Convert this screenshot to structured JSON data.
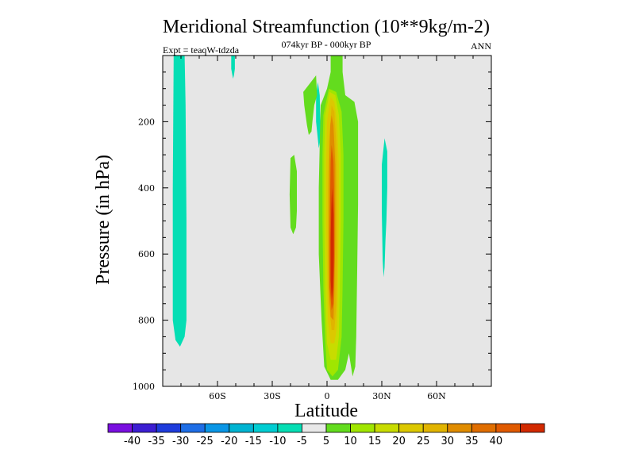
{
  "chart_data": {
    "type": "contour",
    "title": "Meridional Streamfunction (10**9kg/m-2)",
    "subtitle": "074kyr BP - 000kyr BP",
    "left_label": "Expt = teaqW-tdzda",
    "right_label": "ANN",
    "xlabel": "Latitude",
    "ylabel": "Pressure (in hPa)",
    "xlim": [
      -90,
      90
    ],
    "ylim": [
      0,
      1000
    ],
    "y_reversed": true,
    "x_ticks": [
      {
        "value": -60,
        "label": "60S"
      },
      {
        "value": -30,
        "label": "30S"
      },
      {
        "value": 0,
        "label": "0"
      },
      {
        "value": 30,
        "label": "30N"
      },
      {
        "value": 60,
        "label": "60N"
      }
    ],
    "y_ticks": [
      {
        "value": 200,
        "label": "200"
      },
      {
        "value": 400,
        "label": "400"
      },
      {
        "value": 600,
        "label": "600"
      },
      {
        "value": 800,
        "label": "800"
      },
      {
        "value": 1000,
        "label": "1000"
      }
    ],
    "background_color": "#e6e6e6",
    "contour_regions": [
      {
        "name": "sh-mid-lat-negative",
        "level": "-10",
        "color": "#05deb4",
        "points": [
          [
            -84,
            0
          ],
          [
            -78,
            0
          ],
          [
            -77.5,
            150
          ],
          [
            -77,
            500
          ],
          [
            -77,
            800
          ],
          [
            -78,
            850
          ],
          [
            -80.5,
            880
          ],
          [
            -83,
            860
          ],
          [
            -84.5,
            800
          ],
          [
            -84.5,
            400
          ]
        ]
      },
      {
        "name": "sh-upper-small-negative",
        "level": "-10",
        "color": "#05deb4",
        "points": [
          [
            -52.5,
            0
          ],
          [
            -50.5,
            0
          ],
          [
            -50.5,
            40
          ],
          [
            -51,
            60
          ],
          [
            -51.5,
            70
          ],
          [
            -52.5,
            40
          ]
        ]
      },
      {
        "name": "tropical-upper-negative",
        "level": "-10",
        "color": "#05deb4",
        "points": [
          [
            -5,
            80
          ],
          [
            -4,
            120
          ],
          [
            -3.5,
            250
          ],
          [
            -4.5,
            280
          ],
          [
            -6,
            200
          ],
          [
            -6,
            120
          ]
        ]
      },
      {
        "name": "nh-subtropics-negative",
        "level": "-10",
        "color": "#05deb4",
        "points": [
          [
            31.5,
            250
          ],
          [
            33,
            290
          ],
          [
            33,
            400
          ],
          [
            32.5,
            500
          ],
          [
            32,
            560
          ],
          [
            31.5,
            640
          ],
          [
            31,
            670
          ],
          [
            30.5,
            620
          ],
          [
            30,
            470
          ],
          [
            30,
            330
          ]
        ]
      },
      {
        "name": "sh-subtropics-positive",
        "level": "5",
        "color": "#63dc1e",
        "points": [
          [
            -20,
            310
          ],
          [
            -18,
            300
          ],
          [
            -16.5,
            350
          ],
          [
            -16.5,
            470
          ],
          [
            -17,
            520
          ],
          [
            -18.5,
            540
          ],
          [
            -20,
            520
          ],
          [
            -20.5,
            420
          ]
        ]
      },
      {
        "name": "upper-trop-positive",
        "level": "5",
        "color": "#63dc1e",
        "points": [
          [
            -13,
            110
          ],
          [
            -6,
            60
          ],
          [
            -5.5,
            120
          ],
          [
            -7,
            150
          ],
          [
            -8,
            200
          ],
          [
            -8.5,
            230
          ],
          [
            -10,
            240
          ],
          [
            -11,
            210
          ],
          [
            -12.5,
            150
          ]
        ]
      },
      {
        "name": "main-cell-5",
        "level": "5",
        "color": "#63dc1e",
        "points": [
          [
            2,
            0
          ],
          [
            8.5,
            0
          ],
          [
            8.5,
            50
          ],
          [
            10,
            120
          ],
          [
            15,
            140
          ],
          [
            17,
            200
          ],
          [
            17,
            330
          ],
          [
            17,
            450
          ],
          [
            16.5,
            650
          ],
          [
            16,
            850
          ],
          [
            15.5,
            940
          ],
          [
            14,
            970
          ],
          [
            12,
            900
          ],
          [
            10,
            950
          ],
          [
            6,
            980
          ],
          [
            2,
            980
          ],
          [
            -1.5,
            940
          ],
          [
            -3,
            800
          ],
          [
            -4.5,
            600
          ],
          [
            -4.5,
            400
          ],
          [
            -4,
            270
          ],
          [
            -3.5,
            150
          ],
          [
            0,
            100
          ],
          [
            2,
            50
          ]
        ]
      },
      {
        "name": "main-cell-10",
        "level": "10",
        "color": "#a0e600",
        "points": [
          [
            1,
            100
          ],
          [
            5,
            110
          ],
          [
            8,
            170
          ],
          [
            9,
            300
          ],
          [
            9,
            500
          ],
          [
            8.5,
            700
          ],
          [
            8,
            850
          ],
          [
            7,
            900
          ],
          [
            6,
            950
          ],
          [
            3,
            970
          ],
          [
            0,
            950
          ],
          [
            -1,
            860
          ],
          [
            -2,
            700
          ],
          [
            -2.5,
            500
          ],
          [
            -2.5,
            300
          ],
          [
            -2,
            180
          ]
        ]
      },
      {
        "name": "main-cell-15",
        "level": "15",
        "color": "#c8dc00",
        "points": [
          [
            1.5,
            110
          ],
          [
            4.5,
            120
          ],
          [
            6.5,
            180
          ],
          [
            7.5,
            300
          ],
          [
            7.5,
            500
          ],
          [
            7,
            700
          ],
          [
            6.5,
            850
          ],
          [
            5,
            920
          ],
          [
            2,
            920
          ],
          [
            0,
            870
          ],
          [
            -1,
            700
          ],
          [
            -1.5,
            500
          ],
          [
            -1.5,
            300
          ],
          [
            -1,
            180
          ]
        ]
      },
      {
        "name": "main-cell-20",
        "level": "20",
        "color": "#dcc800",
        "points": [
          [
            2,
            125
          ],
          [
            4,
            140
          ],
          [
            5.5,
            200
          ],
          [
            6.5,
            330
          ],
          [
            6.5,
            500
          ],
          [
            6,
            700
          ],
          [
            5.5,
            820
          ],
          [
            4,
            870
          ],
          [
            2,
            870
          ],
          [
            0.5,
            800
          ],
          [
            0,
            650
          ],
          [
            -0.5,
            500
          ],
          [
            -0.5,
            330
          ],
          [
            0,
            200
          ]
        ]
      },
      {
        "name": "main-cell-25",
        "level": "25",
        "color": "#e1b400",
        "points": [
          [
            2.5,
            150
          ],
          [
            4,
            170
          ],
          [
            5,
            260
          ],
          [
            5.5,
            400
          ],
          [
            5.5,
            600
          ],
          [
            5,
            760
          ],
          [
            4,
            830
          ],
          [
            2.5,
            830
          ],
          [
            1,
            750
          ],
          [
            0.5,
            600
          ],
          [
            0.5,
            400
          ],
          [
            1,
            260
          ]
        ]
      },
      {
        "name": "main-cell-30",
        "level": "30",
        "color": "#e08c00",
        "points": [
          [
            2.5,
            180
          ],
          [
            3.5,
            210
          ],
          [
            4.5,
            330
          ],
          [
            4.5,
            550
          ],
          [
            4,
            720
          ],
          [
            3.5,
            800
          ],
          [
            2,
            790
          ],
          [
            1,
            700
          ],
          [
            1,
            550
          ],
          [
            1.2,
            330
          ],
          [
            1.8,
            210
          ]
        ]
      },
      {
        "name": "main-cell-35",
        "level": "35",
        "color": "#e05a00",
        "points": [
          [
            2.5,
            270
          ],
          [
            3.5,
            320
          ],
          [
            4,
            450
          ],
          [
            4,
            620
          ],
          [
            3.5,
            750
          ],
          [
            2.5,
            770
          ],
          [
            1.5,
            700
          ],
          [
            1.5,
            550
          ],
          [
            1.8,
            400
          ],
          [
            2,
            320
          ]
        ]
      },
      {
        "name": "main-cell-40",
        "level": "40",
        "color": "#d22a00",
        "points": [
          [
            2.7,
            400
          ],
          [
            3.6,
            480
          ],
          [
            3.7,
            600
          ],
          [
            3.4,
            700
          ],
          [
            2.6,
            740
          ],
          [
            2,
            680
          ],
          [
            2,
            560
          ],
          [
            2.3,
            470
          ]
        ]
      }
    ],
    "colorbar": {
      "colors": [
        "#7a0fe0",
        "#3c1ed2",
        "#1e3cdc",
        "#1e6ee6",
        "#0a96e6",
        "#00b4d2",
        "#00cdd2",
        "#05deb4",
        "#e8e8e8",
        "#63dc1e",
        "#a0e600",
        "#c8dc00",
        "#dcc800",
        "#e1b400",
        "#e08c00",
        "#e06e00",
        "#e05a00",
        "#d22a00"
      ],
      "labels": [
        "-40",
        "-35",
        "-30",
        "-25",
        "-20",
        "-15",
        "-10",
        "-5",
        "5",
        "10",
        "15",
        "20",
        "25",
        "30",
        "35",
        "40"
      ]
    }
  }
}
